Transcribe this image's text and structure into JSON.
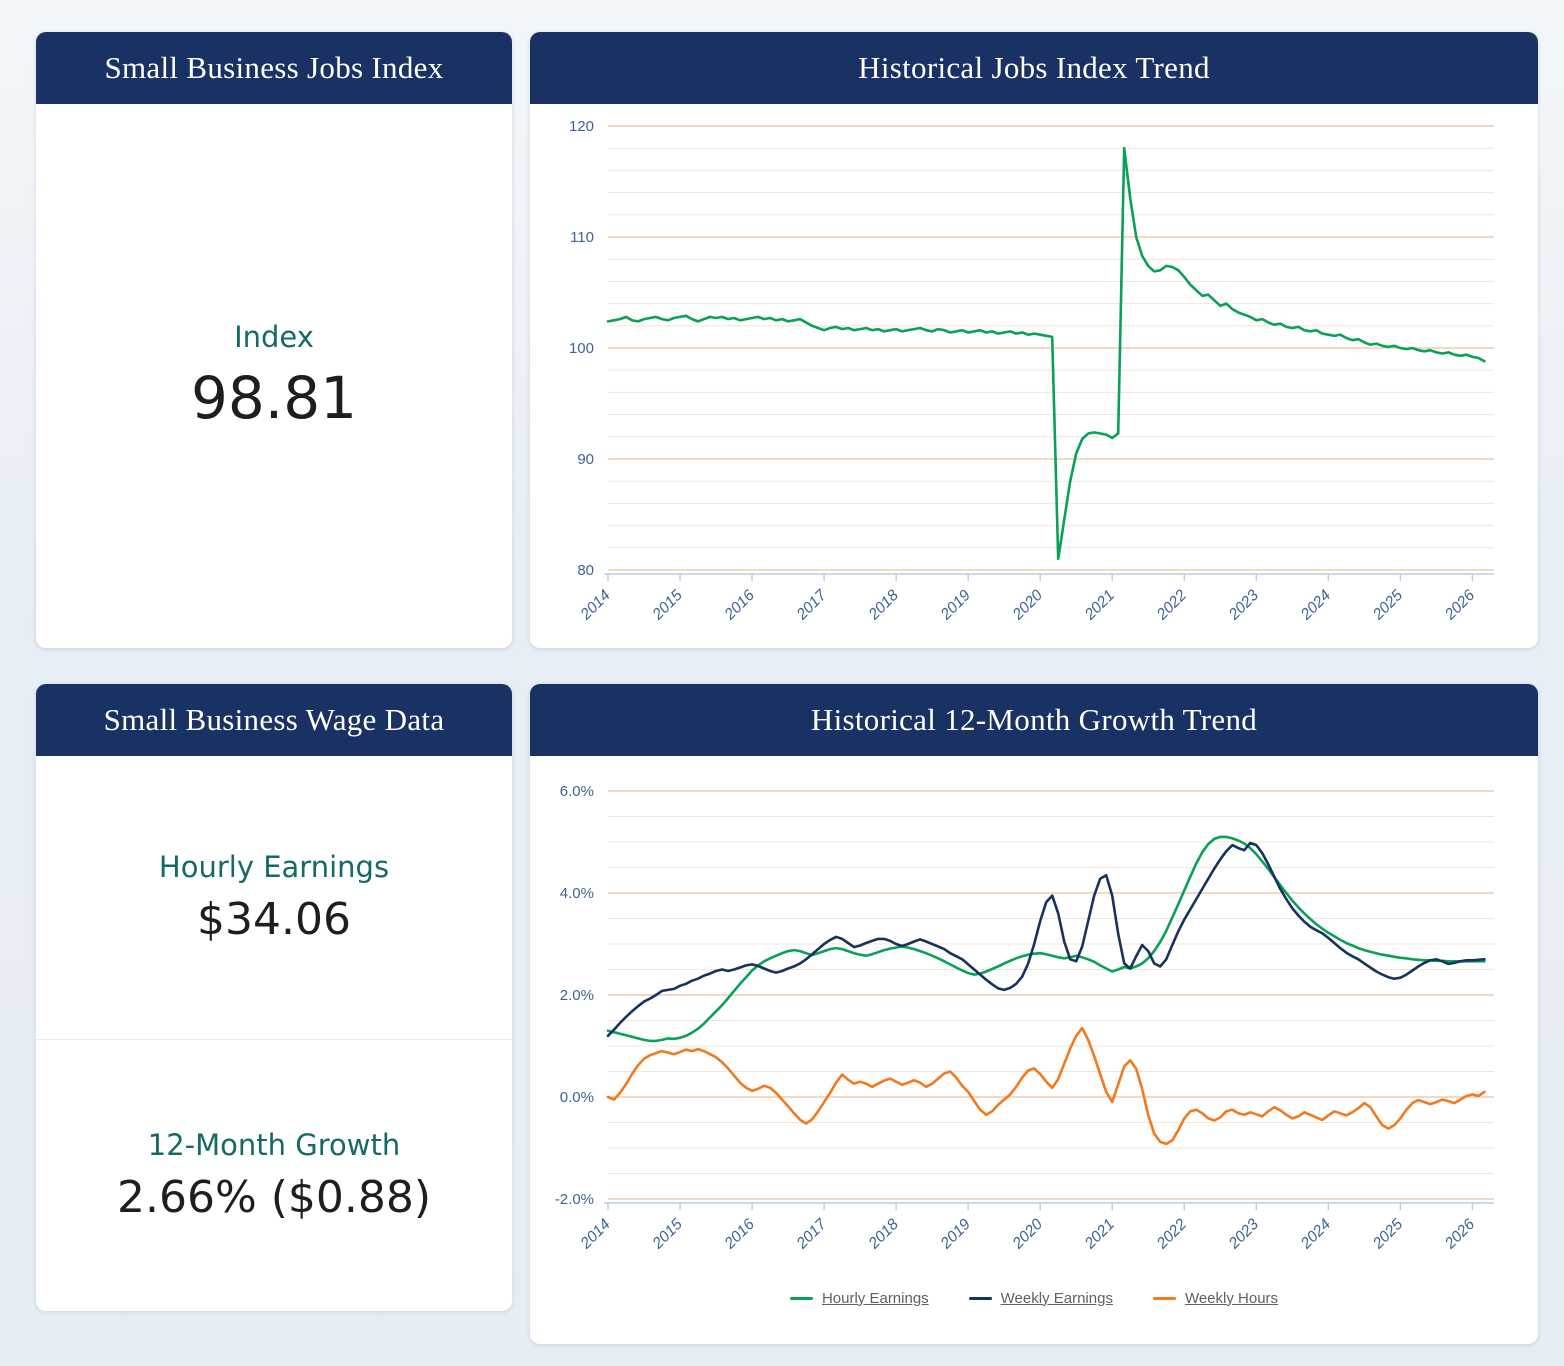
{
  "theme": {
    "header_bg": "#1a3263",
    "card_bg": "#ffffff",
    "label_teal": "#156a68",
    "value_dark": "#1e1e1e",
    "grid_major": "#eec19e",
    "grid_minor": "#f8e3d3",
    "axis_line": "#b9cbe8",
    "axis_label": "#3d6398",
    "green": "#09a057",
    "navy": "#16325f",
    "orange": "#f1791f"
  },
  "cards": {
    "jobs_index": {
      "title": "Small Business Jobs Index",
      "metric_label": "Index",
      "metric_value": "98.81"
    },
    "jobs_trend": {
      "title": "Historical Jobs Index Trend"
    },
    "wage_data": {
      "title": "Small Business Wage Data",
      "hourly_label": "Hourly Earnings",
      "hourly_value": "$34.06",
      "growth_label": "12-Month Growth",
      "growth_value": "2.66% ($0.88)"
    },
    "growth_trend": {
      "title": "Historical 12-Month Growth Trend"
    }
  },
  "chart_data": [
    {
      "type": "line",
      "title": "Historical Jobs Index Trend",
      "xlabel": "",
      "ylabel": "",
      "x_start": 2014,
      "x_step": 0.0833333,
      "xlim": [
        2014,
        2026.3
      ],
      "ylim": [
        80,
        120
      ],
      "x_ticks": [
        2014,
        2015,
        2016,
        2017,
        2018,
        2019,
        2020,
        2021,
        2022,
        2023,
        2024,
        2025,
        2026
      ],
      "y_ticks": {
        "values": [
          80,
          90,
          100,
          110,
          120
        ],
        "labels": [
          "80",
          "90",
          "100",
          "110",
          "120"
        ]
      },
      "minor_step": 2,
      "grid": "on",
      "legend": "none",
      "series": [
        {
          "name": "Jobs Index",
          "color": "#09a057",
          "values": [
            102.4,
            102.5,
            102.6,
            102.8,
            102.5,
            102.4,
            102.6,
            102.7,
            102.8,
            102.6,
            102.5,
            102.7,
            102.8,
            102.9,
            102.6,
            102.4,
            102.6,
            102.8,
            102.7,
            102.8,
            102.6,
            102.7,
            102.5,
            102.6,
            102.7,
            102.8,
            102.6,
            102.7,
            102.5,
            102.6,
            102.4,
            102.5,
            102.6,
            102.3,
            102.0,
            101.8,
            101.6,
            101.8,
            101.9,
            101.7,
            101.8,
            101.6,
            101.7,
            101.8,
            101.6,
            101.7,
            101.5,
            101.6,
            101.7,
            101.5,
            101.6,
            101.7,
            101.8,
            101.6,
            101.5,
            101.7,
            101.6,
            101.4,
            101.5,
            101.6,
            101.4,
            101.5,
            101.6,
            101.4,
            101.5,
            101.3,
            101.4,
            101.5,
            101.3,
            101.4,
            101.2,
            101.3,
            101.2,
            101.1,
            101.0,
            81.0,
            84.5,
            88.0,
            90.5,
            91.8,
            92.3,
            92.4,
            92.3,
            92.2,
            91.9,
            92.3,
            118.0,
            113.5,
            110.0,
            108.3,
            107.4,
            106.9,
            107.0,
            107.4,
            107.3,
            107.0,
            106.4,
            105.7,
            105.2,
            104.7,
            104.8,
            104.3,
            103.8,
            104.0,
            103.5,
            103.2,
            103.0,
            102.8,
            102.5,
            102.6,
            102.3,
            102.1,
            102.2,
            101.9,
            101.8,
            101.9,
            101.6,
            101.5,
            101.6,
            101.3,
            101.2,
            101.1,
            101.2,
            100.9,
            100.7,
            100.8,
            100.5,
            100.3,
            100.4,
            100.2,
            100.1,
            100.2,
            100.0,
            99.9,
            100.0,
            99.8,
            99.7,
            99.8,
            99.6,
            99.5,
            99.6,
            99.4,
            99.3,
            99.4,
            99.2,
            99.1,
            98.81
          ]
        }
      ]
    },
    {
      "type": "line",
      "title": "Historical 12-Month Growth Trend",
      "xlabel": "",
      "ylabel": "",
      "x_start": 2014,
      "x_step": 0.0833333,
      "xlim": [
        2014,
        2026.3
      ],
      "ylim": [
        -2,
        6
      ],
      "x_ticks": [
        2014,
        2015,
        2016,
        2017,
        2018,
        2019,
        2020,
        2021,
        2022,
        2023,
        2024,
        2025,
        2026
      ],
      "y_ticks": {
        "values": [
          -2,
          0,
          2,
          4,
          6
        ],
        "labels": [
          "-2.0%",
          "0.0%",
          "2.0%",
          "4.0%",
          "6.0%"
        ]
      },
      "minor_step": 0.5,
      "grid": "on",
      "legend": "bottom",
      "series": [
        {
          "name": "Hourly Earnings",
          "color": "#09a057",
          "values": [
            1.3,
            1.27,
            1.24,
            1.21,
            1.18,
            1.15,
            1.12,
            1.1,
            1.1,
            1.12,
            1.15,
            1.14,
            1.16,
            1.2,
            1.26,
            1.34,
            1.44,
            1.56,
            1.68,
            1.8,
            1.94,
            2.08,
            2.22,
            2.35,
            2.48,
            2.58,
            2.66,
            2.72,
            2.77,
            2.82,
            2.86,
            2.88,
            2.86,
            2.82,
            2.78,
            2.82,
            2.86,
            2.9,
            2.92,
            2.9,
            2.86,
            2.82,
            2.79,
            2.77,
            2.8,
            2.84,
            2.88,
            2.91,
            2.93,
            2.95,
            2.93,
            2.9,
            2.86,
            2.82,
            2.77,
            2.72,
            2.66,
            2.6,
            2.54,
            2.48,
            2.43,
            2.4,
            2.42,
            2.46,
            2.51,
            2.56,
            2.62,
            2.67,
            2.72,
            2.76,
            2.79,
            2.81,
            2.82,
            2.8,
            2.77,
            2.74,
            2.72,
            2.74,
            2.77,
            2.74,
            2.7,
            2.65,
            2.58,
            2.52,
            2.46,
            2.5,
            2.55,
            2.52,
            2.56,
            2.62,
            2.72,
            2.86,
            3.04,
            3.26,
            3.52,
            3.78,
            4.05,
            4.32,
            4.58,
            4.8,
            4.96,
            5.06,
            5.1,
            5.1,
            5.07,
            5.03,
            4.97,
            4.88,
            4.76,
            4.62,
            4.47,
            4.31,
            4.15,
            4.0,
            3.85,
            3.72,
            3.6,
            3.49,
            3.39,
            3.3,
            3.22,
            3.15,
            3.08,
            3.02,
            2.97,
            2.92,
            2.88,
            2.85,
            2.82,
            2.79,
            2.77,
            2.75,
            2.73,
            2.72,
            2.7,
            2.69,
            2.68,
            2.68,
            2.67,
            2.67,
            2.66,
            2.66,
            2.66,
            2.66,
            2.66,
            2.66,
            2.66
          ]
        },
        {
          "name": "Weekly Earnings",
          "color": "#16325f",
          "values": [
            1.2,
            1.32,
            1.45,
            1.57,
            1.68,
            1.78,
            1.87,
            1.93,
            2.0,
            2.08,
            2.1,
            2.12,
            2.18,
            2.22,
            2.28,
            2.32,
            2.38,
            2.42,
            2.47,
            2.5,
            2.47,
            2.5,
            2.54,
            2.58,
            2.6,
            2.57,
            2.52,
            2.47,
            2.44,
            2.47,
            2.52,
            2.56,
            2.62,
            2.7,
            2.8,
            2.9,
            3.0,
            3.08,
            3.14,
            3.1,
            3.02,
            2.94,
            2.97,
            3.02,
            3.06,
            3.1,
            3.1,
            3.06,
            3.0,
            2.96,
            3.0,
            3.05,
            3.09,
            3.05,
            3.0,
            2.95,
            2.9,
            2.82,
            2.76,
            2.7,
            2.6,
            2.5,
            2.4,
            2.3,
            2.21,
            2.13,
            2.1,
            2.14,
            2.22,
            2.36,
            2.62,
            3.0,
            3.45,
            3.82,
            3.95,
            3.6,
            3.05,
            2.7,
            2.66,
            2.95,
            3.45,
            3.95,
            4.28,
            4.35,
            3.95,
            3.2,
            2.62,
            2.52,
            2.76,
            2.98,
            2.86,
            2.62,
            2.56,
            2.7,
            2.98,
            3.25,
            3.48,
            3.68,
            3.88,
            4.08,
            4.28,
            4.48,
            4.66,
            4.82,
            4.94,
            4.88,
            4.84,
            4.98,
            4.94,
            4.78,
            4.56,
            4.32,
            4.08,
            3.88,
            3.7,
            3.56,
            3.44,
            3.34,
            3.27,
            3.21,
            3.12,
            3.02,
            2.92,
            2.83,
            2.76,
            2.7,
            2.62,
            2.54,
            2.46,
            2.4,
            2.35,
            2.32,
            2.34,
            2.4,
            2.48,
            2.56,
            2.63,
            2.68,
            2.7,
            2.66,
            2.61,
            2.63,
            2.66,
            2.68,
            2.68,
            2.69,
            2.7
          ]
        },
        {
          "name": "Weekly Hours",
          "color": "#f1791f",
          "values": [
            0.0,
            -0.05,
            0.08,
            0.25,
            0.45,
            0.62,
            0.75,
            0.82,
            0.86,
            0.9,
            0.87,
            0.84,
            0.88,
            0.93,
            0.9,
            0.94,
            0.9,
            0.84,
            0.78,
            0.68,
            0.56,
            0.42,
            0.28,
            0.18,
            0.12,
            0.16,
            0.22,
            0.18,
            0.08,
            -0.05,
            -0.18,
            -0.32,
            -0.45,
            -0.52,
            -0.44,
            -0.28,
            -0.1,
            0.08,
            0.28,
            0.44,
            0.34,
            0.26,
            0.3,
            0.26,
            0.2,
            0.26,
            0.32,
            0.36,
            0.3,
            0.24,
            0.28,
            0.33,
            0.28,
            0.2,
            0.26,
            0.36,
            0.46,
            0.5,
            0.38,
            0.22,
            0.1,
            -0.08,
            -0.25,
            -0.35,
            -0.28,
            -0.15,
            -0.05,
            0.05,
            0.2,
            0.38,
            0.52,
            0.56,
            0.45,
            0.3,
            0.18,
            0.35,
            0.65,
            0.95,
            1.2,
            1.35,
            1.12,
            0.8,
            0.45,
            0.1,
            -0.1,
            0.25,
            0.6,
            0.72,
            0.55,
            0.15,
            -0.35,
            -0.72,
            -0.88,
            -0.92,
            -0.85,
            -0.65,
            -0.42,
            -0.28,
            -0.25,
            -0.32,
            -0.42,
            -0.46,
            -0.4,
            -0.28,
            -0.25,
            -0.32,
            -0.35,
            -0.3,
            -0.34,
            -0.38,
            -0.28,
            -0.2,
            -0.26,
            -0.35,
            -0.42,
            -0.38,
            -0.3,
            -0.35,
            -0.4,
            -0.45,
            -0.36,
            -0.28,
            -0.32,
            -0.36,
            -0.3,
            -0.22,
            -0.12,
            -0.2,
            -0.38,
            -0.55,
            -0.62,
            -0.55,
            -0.42,
            -0.25,
            -0.12,
            -0.06,
            -0.1,
            -0.14,
            -0.1,
            -0.05,
            -0.08,
            -0.12,
            -0.05,
            0.02,
            0.05,
            0.02,
            0.1
          ]
        }
      ]
    }
  ]
}
